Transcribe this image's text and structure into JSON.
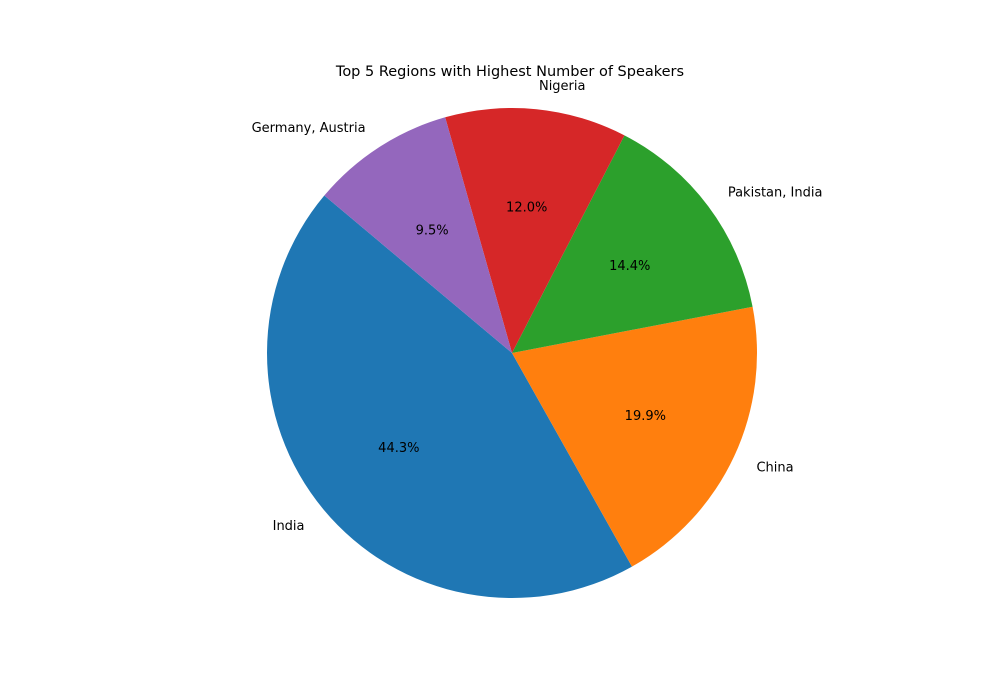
{
  "chart_data": {
    "type": "pie",
    "title": "Top 5 Regions with Highest Number of Speakers",
    "start_angle_deg": 140,
    "direction": "counterclockwise",
    "slices": [
      {
        "label": "India",
        "percent": 44.3,
        "pct_label": "44.3%",
        "color": "#1f77b4"
      },
      {
        "label": "China",
        "percent": 19.9,
        "pct_label": "19.9%",
        "color": "#ff7f0e"
      },
      {
        "label": "Pakistan, India",
        "percent": 14.4,
        "pct_label": "14.4%",
        "color": "#2ca02c"
      },
      {
        "label": "Nigeria",
        "percent": 12.0,
        "pct_label": "12.0%",
        "color": "#d62728"
      },
      {
        "label": "Germany, Austria",
        "percent": 9.5,
        "pct_label": "9.5%",
        "color": "#9467bd"
      }
    ]
  }
}
